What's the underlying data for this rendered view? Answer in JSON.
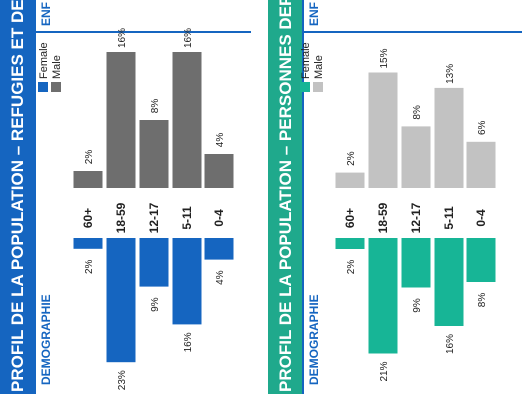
{
  "panels": [
    {
      "title": "PROFIL DE LA POPULATION – REFUGIES ET DEMA",
      "section": "DEMOGRAPHIE",
      "tab": "ENF",
      "title_bg": "#1565c0",
      "section_color": "#1565c0",
      "tab_color": "#1565c0",
      "line_color": "#1565c0",
      "female_color": "#1565c0",
      "male_color": "#6e6e6e",
      "legend": {
        "female": "Female",
        "male": "Male"
      },
      "chart_data": {
        "type": "bar",
        "categories": [
          "60+",
          "18-59",
          "12-17",
          "5-11",
          "0-4"
        ],
        "series": [
          {
            "name": "Male",
            "values": [
              2,
              16,
              8,
              16,
              4
            ],
            "labels": [
              "2%",
              "16%",
              "8%",
              "16%",
              "4%"
            ]
          },
          {
            "name": "Female",
            "values": [
              2,
              23,
              9,
              16,
              4
            ],
            "labels": [
              "2%",
              "23%",
              "9%",
              "16%",
              "4%"
            ]
          }
        ]
      }
    },
    {
      "title": "PROFIL DE LA POPULATION – PERSONNES DEPL",
      "section": "DEMOGRAPHIE",
      "tab": "ENF",
      "title_bg": "#1fa98c",
      "section_color": "#1565c0",
      "tab_color": "#1565c0",
      "line_color": "#1565c0",
      "female_color": "#17b596",
      "male_color": "#c2c2c2",
      "legend": {
        "female": "Female",
        "male": "Male"
      },
      "chart_data": {
        "type": "bar",
        "categories": [
          "60+",
          "18-59",
          "12-17",
          "5-11",
          "0-4"
        ],
        "series": [
          {
            "name": "Male",
            "values": [
              2,
              15,
              8,
              13,
              6
            ],
            "labels": [
              "2%",
              "15%",
              "8%",
              "13%",
              "6%"
            ]
          },
          {
            "name": "Female",
            "values": [
              2,
              21,
              9,
              16,
              8
            ],
            "labels": [
              "2%",
              "21%",
              "9%",
              "16%",
              "8%"
            ]
          }
        ]
      }
    }
  ]
}
